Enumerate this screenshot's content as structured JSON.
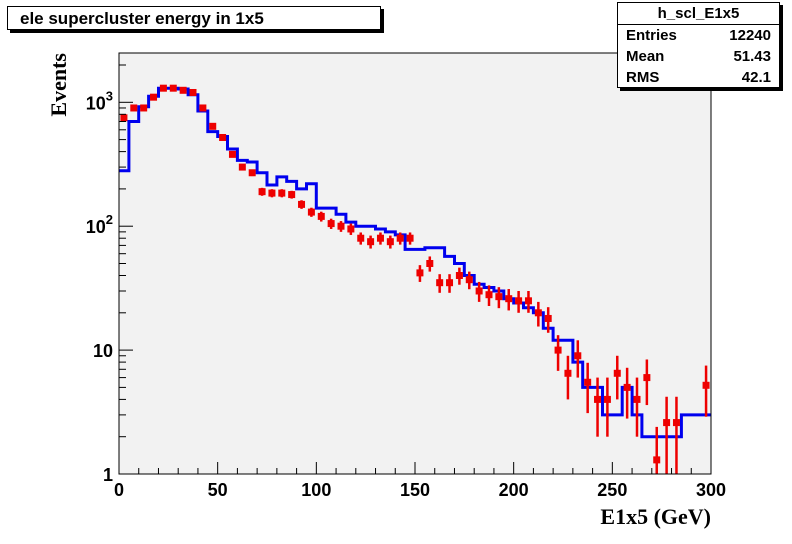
{
  "title": "ele supercluster energy in 1x5",
  "stats": {
    "name": "h_scl_E1x5",
    "rows": [
      {
        "label": "Entries",
        "value": "12240"
      },
      {
        "label": "Mean",
        "value": "51.43"
      },
      {
        "label": "RMS",
        "value": "42.1"
      }
    ]
  },
  "chart_data": {
    "type": "histogram",
    "title": "ele supercluster energy in 1x5",
    "xlabel": "E1x5 (GeV)",
    "ylabel": "Events",
    "xlim": [
      0,
      300
    ],
    "ylim": [
      1,
      2500
    ],
    "yscale": "log",
    "x_ticks": [
      "0",
      "50",
      "100",
      "150",
      "200",
      "250",
      "300"
    ],
    "y_ticks": [
      {
        "value": 1,
        "label": "1"
      },
      {
        "value": 10,
        "label": "10"
      },
      {
        "value": 100,
        "label": "10^2"
      },
      {
        "value": 1000,
        "label": "10^3"
      }
    ],
    "colors": {
      "histogram": "#0000ee",
      "points": "#ee0000",
      "frame_bg": "#f2f2f2"
    },
    "histogram": {
      "bin_width": 5,
      "values": [
        280,
        700,
        920,
        1120,
        1300,
        1300,
        1280,
        1150,
        850,
        580,
        530,
        420,
        340,
        330,
        270,
        215,
        250,
        230,
        200,
        220,
        140,
        140,
        125,
        108,
        100,
        100,
        95,
        90,
        85,
        65,
        65,
        67,
        67,
        57,
        50,
        40,
        34,
        32,
        30,
        26,
        24,
        22,
        20,
        15,
        12,
        12,
        8,
        5,
        5,
        3,
        3,
        5,
        3,
        2,
        2,
        2,
        2,
        3,
        3,
        3
      ]
    },
    "points": {
      "x": [
        2.5,
        7.5,
        12.5,
        17.5,
        22.5,
        27.5,
        32.5,
        37.5,
        42.5,
        47.5,
        52.5,
        57.5,
        62.5,
        67.5,
        72.5,
        77.5,
        82.5,
        87.5,
        92.5,
        97.5,
        102.5,
        107.5,
        112.5,
        117.5,
        122.5,
        127.5,
        132.5,
        137.5,
        142.5,
        147.5,
        152.5,
        157.5,
        162.5,
        167.5,
        172.5,
        177.5,
        182.5,
        187.5,
        192.5,
        197.5,
        202.5,
        207.5,
        212.5,
        217.5,
        222.5,
        227.5,
        232.5,
        237.5,
        242.5,
        247.5,
        252.5,
        257.5,
        262.5,
        267.5,
        272.5,
        277.5,
        282.5,
        297.5
      ],
      "y": [
        750,
        900,
        900,
        1100,
        1300,
        1300,
        1250,
        1200,
        900,
        640,
        520,
        380,
        300,
        270,
        190,
        185,
        185,
        180,
        150,
        130,
        120,
        105,
        100,
        95,
        80,
        75,
        80,
        75,
        80,
        80,
        42,
        50,
        35,
        35,
        40,
        37,
        30,
        28,
        27,
        26,
        25,
        25,
        20,
        18,
        10,
        6.5,
        9,
        5.5,
        4,
        4,
        6.5,
        5,
        4,
        6,
        1.3,
        2.6,
        2.6,
        5.2
      ],
      "err": [
        27,
        30,
        30,
        33,
        36,
        36,
        35,
        35,
        30,
        25,
        23,
        19,
        17,
        16,
        14,
        14,
        14,
        13,
        12,
        11,
        11,
        10,
        10,
        10,
        9,
        9,
        9,
        9,
        9,
        9,
        6.5,
        7,
        6,
        6,
        6.3,
        6,
        5.5,
        5.3,
        5.2,
        5.1,
        5,
        5,
        4.5,
        4.2,
        3.2,
        2.5,
        3,
        2.4,
        2,
        2,
        2.5,
        2.2,
        2,
        2.4,
        1.1,
        1.6,
        1.6,
        2.3
      ]
    }
  }
}
